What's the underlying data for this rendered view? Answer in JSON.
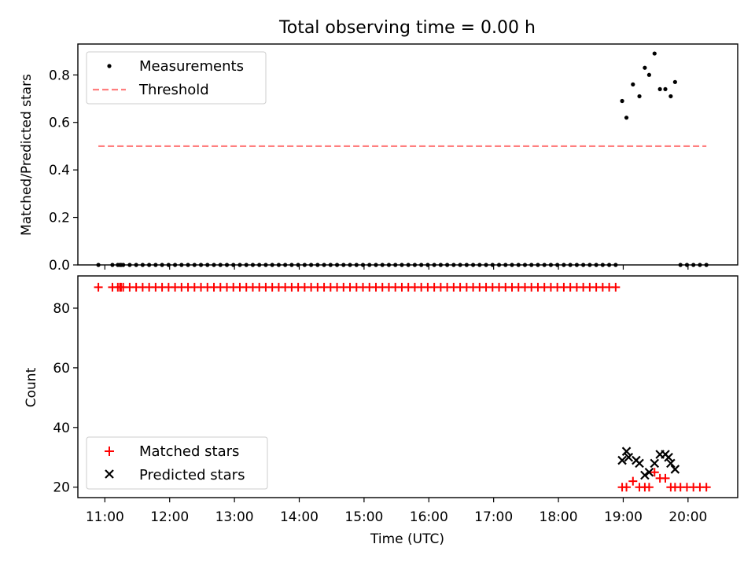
{
  "chart_data": [
    {
      "type": "scatter",
      "title": "Total observing time = 0.00 h",
      "xlabel": "",
      "ylabel": "Matched/Predicted stars",
      "xlim": [
        "10:35",
        "20:46"
      ],
      "ylim": [
        0,
        0.93
      ],
      "yticks": [
        0.0,
        0.2,
        0.4,
        0.6,
        0.8
      ],
      "ytick_labels": [
        "0.0",
        "0.2",
        "0.4",
        "0.6",
        "0.8"
      ],
      "grid": false,
      "legend": "top-left",
      "series": [
        {
          "name": "Measurements",
          "marker": "dot",
          "color": "#000000",
          "points": [
            [
              "10:54",
              0
            ],
            [
              "11:07",
              0
            ],
            [
              "11:12",
              0
            ],
            [
              "11:14",
              0
            ],
            [
              "11:15",
              0
            ],
            [
              "11:17",
              0
            ],
            [
              "11:23",
              0
            ],
            [
              "11:29",
              0
            ],
            [
              "11:35",
              0
            ],
            [
              "11:41",
              0
            ],
            [
              "11:47",
              0
            ],
            [
              "11:53",
              0
            ],
            [
              "11:59",
              0
            ],
            [
              "12:05",
              0
            ],
            [
              "12:11",
              0
            ],
            [
              "12:17",
              0
            ],
            [
              "12:23",
              0
            ],
            [
              "12:29",
              0
            ],
            [
              "12:35",
              0
            ],
            [
              "12:41",
              0
            ],
            [
              "12:47",
              0
            ],
            [
              "12:53",
              0
            ],
            [
              "12:59",
              0
            ],
            [
              "13:05",
              0
            ],
            [
              "13:11",
              0
            ],
            [
              "13:17",
              0
            ],
            [
              "13:23",
              0
            ],
            [
              "13:29",
              0
            ],
            [
              "13:35",
              0
            ],
            [
              "13:41",
              0
            ],
            [
              "13:47",
              0
            ],
            [
              "13:53",
              0
            ],
            [
              "13:59",
              0
            ],
            [
              "14:05",
              0
            ],
            [
              "14:11",
              0
            ],
            [
              "14:17",
              0
            ],
            [
              "14:23",
              0
            ],
            [
              "14:29",
              0
            ],
            [
              "14:35",
              0
            ],
            [
              "14:41",
              0
            ],
            [
              "14:47",
              0
            ],
            [
              "14:53",
              0
            ],
            [
              "14:59",
              0
            ],
            [
              "15:05",
              0
            ],
            [
              "15:11",
              0
            ],
            [
              "15:17",
              0
            ],
            [
              "15:23",
              0
            ],
            [
              "15:29",
              0
            ],
            [
              "15:35",
              0
            ],
            [
              "15:41",
              0
            ],
            [
              "15:47",
              0
            ],
            [
              "15:53",
              0
            ],
            [
              "15:59",
              0
            ],
            [
              "16:05",
              0
            ],
            [
              "16:11",
              0
            ],
            [
              "16:17",
              0
            ],
            [
              "16:23",
              0
            ],
            [
              "16:29",
              0
            ],
            [
              "16:35",
              0
            ],
            [
              "16:41",
              0
            ],
            [
              "16:47",
              0
            ],
            [
              "16:53",
              0
            ],
            [
              "16:59",
              0
            ],
            [
              "17:05",
              0
            ],
            [
              "17:11",
              0
            ],
            [
              "17:17",
              0
            ],
            [
              "17:23",
              0
            ],
            [
              "17:29",
              0
            ],
            [
              "17:35",
              0
            ],
            [
              "17:41",
              0
            ],
            [
              "17:47",
              0
            ],
            [
              "17:53",
              0
            ],
            [
              "17:59",
              0
            ],
            [
              "18:05",
              0
            ],
            [
              "18:11",
              0
            ],
            [
              "18:17",
              0
            ],
            [
              "18:23",
              0
            ],
            [
              "18:29",
              0
            ],
            [
              "18:35",
              0
            ],
            [
              "18:41",
              0
            ],
            [
              "18:47",
              0
            ],
            [
              "18:53",
              0
            ],
            [
              "18:59",
              0.69
            ],
            [
              "19:03",
              0.62
            ],
            [
              "19:09",
              0.76
            ],
            [
              "19:15",
              0.71
            ],
            [
              "19:20",
              0.83
            ],
            [
              "19:24",
              0.8
            ],
            [
              "19:29",
              0.89
            ],
            [
              "19:34",
              0.74
            ],
            [
              "19:39",
              0.74
            ],
            [
              "19:44",
              0.71
            ],
            [
              "19:48",
              0.77
            ],
            [
              "19:53",
              0
            ],
            [
              "19:59",
              0
            ],
            [
              "20:05",
              0
            ],
            [
              "20:11",
              0
            ],
            [
              "20:17",
              0
            ]
          ]
        },
        {
          "name": "Threshold",
          "line_style": "dashed",
          "color": "#ff7f7f",
          "points": [
            [
              "10:54",
              0.5
            ],
            [
              "20:17",
              0.5
            ]
          ]
        }
      ]
    },
    {
      "type": "scatter",
      "title": "",
      "xlabel": "Time (UTC)",
      "ylabel": "Count",
      "xlim": [
        "10:35",
        "20:46"
      ],
      "ylim": [
        16.5,
        90.8
      ],
      "yticks": [
        20,
        40,
        60,
        80
      ],
      "ytick_labels": [
        "20",
        "40",
        "60",
        "80"
      ],
      "xticks": [
        "11:00",
        "12:00",
        "13:00",
        "14:00",
        "15:00",
        "16:00",
        "17:00",
        "18:00",
        "19:00",
        "20:00"
      ],
      "grid": false,
      "legend": "bottom-left",
      "series": [
        {
          "name": "Matched stars",
          "marker": "plus",
          "color": "#ff0000",
          "points": [
            [
              "10:54",
              87
            ],
            [
              "11:07",
              87
            ],
            [
              "11:12",
              87
            ],
            [
              "11:14",
              87
            ],
            [
              "11:15",
              87
            ],
            [
              "11:17",
              87
            ],
            [
              "11:23",
              87
            ],
            [
              "11:29",
              87
            ],
            [
              "11:35",
              87
            ],
            [
              "11:41",
              87
            ],
            [
              "11:47",
              87
            ],
            [
              "11:53",
              87
            ],
            [
              "11:59",
              87
            ],
            [
              "12:05",
              87
            ],
            [
              "12:11",
              87
            ],
            [
              "12:17",
              87
            ],
            [
              "12:23",
              87
            ],
            [
              "12:29",
              87
            ],
            [
              "12:35",
              87
            ],
            [
              "12:41",
              87
            ],
            [
              "12:47",
              87
            ],
            [
              "12:53",
              87
            ],
            [
              "12:59",
              87
            ],
            [
              "13:05",
              87
            ],
            [
              "13:11",
              87
            ],
            [
              "13:17",
              87
            ],
            [
              "13:23",
              87
            ],
            [
              "13:29",
              87
            ],
            [
              "13:35",
              87
            ],
            [
              "13:41",
              87
            ],
            [
              "13:47",
              87
            ],
            [
              "13:53",
              87
            ],
            [
              "13:59",
              87
            ],
            [
              "14:05",
              87
            ],
            [
              "14:11",
              87
            ],
            [
              "14:17",
              87
            ],
            [
              "14:23",
              87
            ],
            [
              "14:29",
              87
            ],
            [
              "14:35",
              87
            ],
            [
              "14:41",
              87
            ],
            [
              "14:47",
              87
            ],
            [
              "14:53",
              87
            ],
            [
              "14:59",
              87
            ],
            [
              "15:05",
              87
            ],
            [
              "15:11",
              87
            ],
            [
              "15:17",
              87
            ],
            [
              "15:23",
              87
            ],
            [
              "15:29",
              87
            ],
            [
              "15:35",
              87
            ],
            [
              "15:41",
              87
            ],
            [
              "15:47",
              87
            ],
            [
              "15:53",
              87
            ],
            [
              "15:59",
              87
            ],
            [
              "16:05",
              87
            ],
            [
              "16:11",
              87
            ],
            [
              "16:17",
              87
            ],
            [
              "16:23",
              87
            ],
            [
              "16:29",
              87
            ],
            [
              "16:35",
              87
            ],
            [
              "16:41",
              87
            ],
            [
              "16:47",
              87
            ],
            [
              "16:53",
              87
            ],
            [
              "16:59",
              87
            ],
            [
              "17:05",
              87
            ],
            [
              "17:11",
              87
            ],
            [
              "17:17",
              87
            ],
            [
              "17:23",
              87
            ],
            [
              "17:29",
              87
            ],
            [
              "17:35",
              87
            ],
            [
              "17:41",
              87
            ],
            [
              "17:47",
              87
            ],
            [
              "17:53",
              87
            ],
            [
              "17:59",
              87
            ],
            [
              "18:05",
              87
            ],
            [
              "18:11",
              87
            ],
            [
              "18:17",
              87
            ],
            [
              "18:23",
              87
            ],
            [
              "18:29",
              87
            ],
            [
              "18:35",
              87
            ],
            [
              "18:41",
              87
            ],
            [
              "18:47",
              87
            ],
            [
              "18:53",
              87
            ],
            [
              "18:59",
              20
            ],
            [
              "19:03",
              20
            ],
            [
              "19:09",
              22
            ],
            [
              "19:15",
              20
            ],
            [
              "19:20",
              20
            ],
            [
              "19:24",
              20
            ],
            [
              "19:29",
              25
            ],
            [
              "19:34",
              23
            ],
            [
              "19:39",
              23
            ],
            [
              "19:44",
              20
            ],
            [
              "19:48",
              20
            ],
            [
              "19:53",
              20
            ],
            [
              "19:59",
              20
            ],
            [
              "20:05",
              20
            ],
            [
              "20:11",
              20
            ],
            [
              "20:17",
              20
            ]
          ]
        },
        {
          "name": "Predicted stars",
          "marker": "x",
          "color": "#000000",
          "points": [
            [
              "18:59",
              29
            ],
            [
              "19:03",
              32
            ],
            [
              "19:05",
              30
            ],
            [
              "19:12",
              29
            ],
            [
              "19:15",
              28
            ],
            [
              "19:20",
              24
            ],
            [
              "19:24",
              25
            ],
            [
              "19:29",
              28
            ],
            [
              "19:34",
              31
            ],
            [
              "19:39",
              31
            ],
            [
              "19:42",
              30
            ],
            [
              "19:44",
              28
            ],
            [
              "19:48",
              26
            ]
          ]
        }
      ]
    }
  ]
}
